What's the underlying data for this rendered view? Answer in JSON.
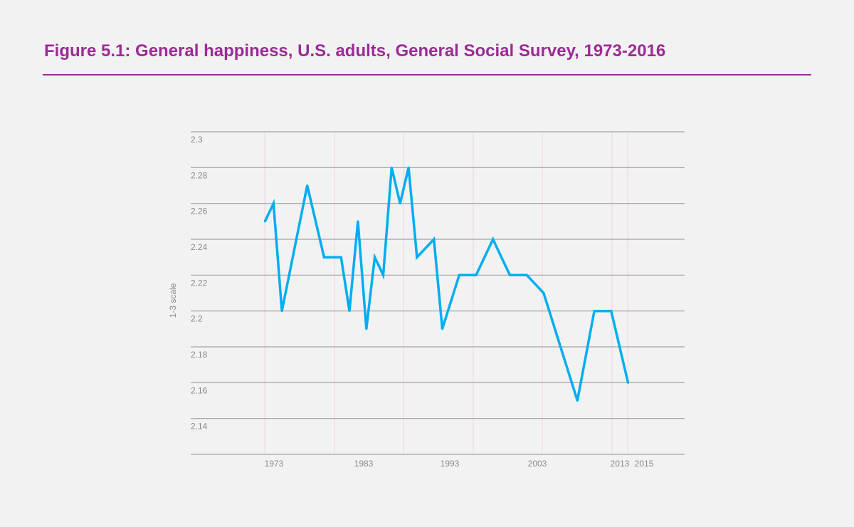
{
  "title": "Figure 5.1: General happiness, U.S. adults, General Social Survey, 1973-2016",
  "colors": {
    "title": "#9c2b96",
    "line": "#00aeef",
    "grid": "#a3a1a3",
    "vgrid": "#eee3ee"
  },
  "chart_data": {
    "type": "line",
    "title": "Figure 5.1: General happiness, U.S. adults, General Social Survey, 1973-2016",
    "xlabel": "",
    "ylabel": "1-3 scale",
    "ylim": [
      2.12,
      2.3
    ],
    "xlim": [
      1964.2,
      2022.7
    ],
    "grid": true,
    "y_ticks": [
      "2.3",
      "2.28",
      "2.26",
      "2.24",
      "2.22",
      "2.2",
      "2.18",
      "2.16",
      "2.14"
    ],
    "x_ticks": [
      "1973",
      "1983",
      "1993",
      "2003",
      "2013",
      "2015"
    ],
    "x": [
      1973,
      1974,
      1975,
      1978,
      1980,
      1982,
      1983,
      1984,
      1985,
      1986,
      1987,
      1988,
      1989,
      1990,
      1991,
      1993,
      1994,
      1996,
      1998,
      2000,
      2002,
      2004,
      2006,
      2010,
      2012,
      2014,
      2016
    ],
    "y": [
      2.25,
      2.26,
      2.2,
      2.27,
      2.23,
      2.23,
      2.2,
      2.25,
      2.19,
      2.23,
      2.22,
      2.28,
      2.26,
      2.28,
      2.23,
      2.24,
      2.19,
      2.22,
      2.22,
      2.24,
      2.22,
      2.22,
      2.21,
      2.15,
      2.2,
      2.2,
      2.16
    ]
  }
}
